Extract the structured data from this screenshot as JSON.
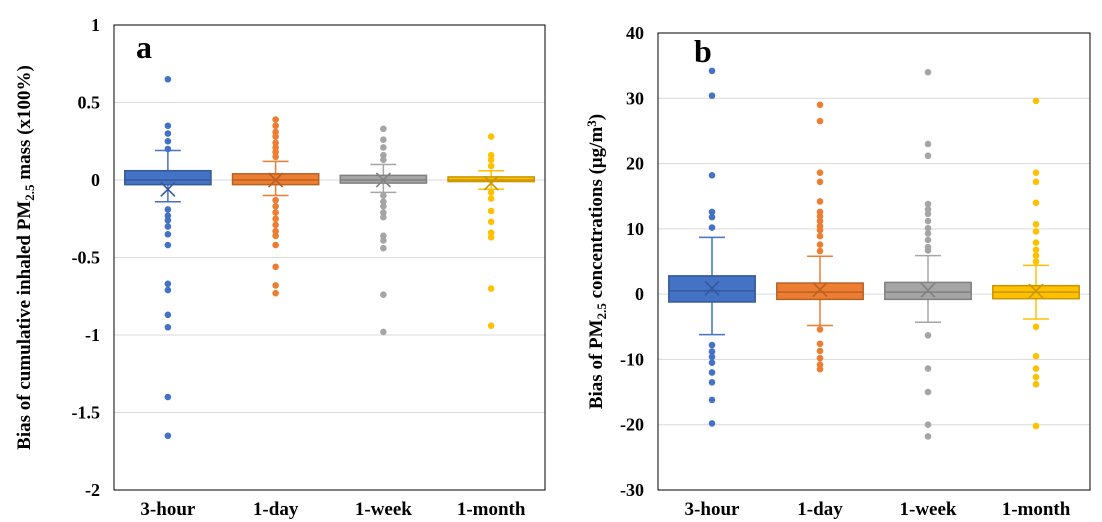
{
  "colors": {
    "3-hour": "#4472C4",
    "1-day": "#ED7D31",
    "1-week": "#A5A5A5",
    "1-month": "#FFC000",
    "gridline": "#D9D9D9",
    "axis": "#000000"
  },
  "chart_data": [
    {
      "type": "box",
      "panel_label": "a",
      "ylabel_pre": "Bias of cumulative inhaled PM",
      "ylabel_sub": "2.5",
      "ylabel_post": " mass (x100%)",
      "xlabel": "",
      "ylim": [
        -2,
        1
      ],
      "yticks": [
        1,
        0.5,
        0,
        -0.5,
        -1,
        -1.5,
        -2
      ],
      "ytick_labels": [
        "1",
        "0.5",
        "0",
        "-0.5",
        "-1",
        "-1.5",
        "-2"
      ],
      "grid": true,
      "legend": "none",
      "categories": [
        "3-hour",
        "1-day",
        "1-week",
        "1-month"
      ],
      "series": [
        {
          "name": "3-hour",
          "q1": -0.03,
          "median": 0.0,
          "q3": 0.06,
          "mean": -0.06,
          "whisker_low": -0.14,
          "whisker_high": 0.19,
          "outliers": [
            0.65,
            0.35,
            0.3,
            0.25,
            0.2,
            -0.19,
            -0.23,
            -0.26,
            -0.3,
            -0.35,
            -0.42,
            -0.67,
            -0.71,
            -0.87,
            -0.95,
            -1.4,
            -1.65
          ]
        },
        {
          "name": "1-day",
          "q1": -0.03,
          "median": 0.0,
          "q3": 0.04,
          "mean": 0.0,
          "whisker_low": -0.1,
          "whisker_high": 0.12,
          "outliers": [
            0.39,
            0.35,
            0.31,
            0.28,
            0.24,
            0.21,
            0.18,
            0.15,
            -0.13,
            -0.17,
            -0.21,
            -0.25,
            -0.29,
            -0.33,
            -0.36,
            -0.42,
            -0.56,
            -0.68,
            -0.73
          ]
        },
        {
          "name": "1-week",
          "q1": -0.02,
          "median": 0.0,
          "q3": 0.03,
          "mean": 0.0,
          "whisker_low": -0.08,
          "whisker_high": 0.1,
          "outliers": [
            0.33,
            0.26,
            0.21,
            0.16,
            0.13,
            -0.1,
            -0.14,
            -0.17,
            -0.21,
            -0.24,
            -0.36,
            -0.39,
            -0.44,
            -0.74,
            -0.98
          ]
        },
        {
          "name": "1-month",
          "q1": -0.01,
          "median": 0.0,
          "q3": 0.02,
          "mean": -0.02,
          "whisker_low": -0.06,
          "whisker_high": 0.06,
          "outliers": [
            0.28,
            0.16,
            0.13,
            0.09,
            -0.08,
            -0.12,
            -0.2,
            -0.27,
            -0.34,
            -0.37,
            -0.7,
            -0.94
          ]
        }
      ]
    },
    {
      "type": "box",
      "panel_label": "b",
      "ylabel_pre": "Bias of PM",
      "ylabel_sub": "2.5",
      "ylabel_mid": " concentrations (μg/m",
      "ylabel_sup": "3",
      "ylabel_post": ")",
      "xlabel": "",
      "ylim": [
        -30,
        40
      ],
      "yticks": [
        40,
        30,
        20,
        10,
        0,
        -10,
        -20,
        -30
      ],
      "ytick_labels": [
        "40",
        "30",
        "20",
        "10",
        "0",
        "-10",
        "-20",
        "-30"
      ],
      "grid": true,
      "legend": "none",
      "categories": [
        "3-hour",
        "1-day",
        "1-week",
        "1-month"
      ],
      "series": [
        {
          "name": "3-hour",
          "q1": -1.2,
          "median": 0.5,
          "q3": 2.8,
          "mean": 0.9,
          "whisker_low": -6.2,
          "whisker_high": 8.7,
          "outliers": [
            34.2,
            30.4,
            18.2,
            12.6,
            11.8,
            10.2,
            -7.8,
            -8.8,
            -9.6,
            -10.5,
            -12.0,
            -13.5,
            -16.2,
            -19.8
          ]
        },
        {
          "name": "1-day",
          "q1": -0.8,
          "median": 0.3,
          "q3": 1.7,
          "mean": 0.7,
          "whisker_low": -4.8,
          "whisker_high": 5.8,
          "outliers": [
            29.0,
            26.5,
            18.6,
            17.2,
            14.2,
            12.6,
            11.9,
            11.2,
            10.4,
            9.8,
            8.9,
            7.6,
            6.6,
            -5.4,
            -7.6,
            -8.7,
            -9.8,
            -10.8,
            -11.5
          ]
        },
        {
          "name": "1-week",
          "q1": -0.8,
          "median": 0.3,
          "q3": 1.8,
          "mean": 0.6,
          "whisker_low": -4.3,
          "whisker_high": 5.9,
          "outliers": [
            34.0,
            23.0,
            21.2,
            13.8,
            13.0,
            12.3,
            11.2,
            10.1,
            9.3,
            8.3,
            7.2,
            6.7,
            -6.3,
            -11.4,
            -15.0,
            -20.0,
            -21.8
          ]
        },
        {
          "name": "1-month",
          "q1": -0.7,
          "median": 0.3,
          "q3": 1.3,
          "mean": 0.5,
          "whisker_low": -3.8,
          "whisker_high": 4.4,
          "outliers": [
            29.6,
            18.6,
            17.2,
            14.0,
            10.7,
            9.6,
            7.9,
            6.8,
            5.9,
            5.0,
            -5.0,
            -9.5,
            -11.4,
            -12.7,
            -13.8,
            -20.2
          ]
        }
      ]
    }
  ]
}
